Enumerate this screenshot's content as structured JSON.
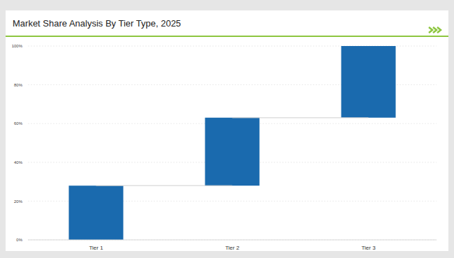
{
  "chart_data": {
    "type": "waterfall",
    "title": "Market Share Analysis By Tier Type, 2025",
    "categories": [
      "Tier 1",
      "Tier 2",
      "Tier 3"
    ],
    "values": [
      28,
      35,
      37
    ],
    "color": "#1a6aae",
    "ylim": [
      0,
      100
    ],
    "yticks": [
      {
        "value": 0,
        "label": "0%"
      },
      {
        "value": 20,
        "label": "20%"
      },
      {
        "value": 40,
        "label": "40%"
      },
      {
        "value": 60,
        "label": "60%"
      },
      {
        "value": 80,
        "label": "80%"
      },
      {
        "value": 100,
        "label": "100%"
      }
    ],
    "grid": true
  }
}
